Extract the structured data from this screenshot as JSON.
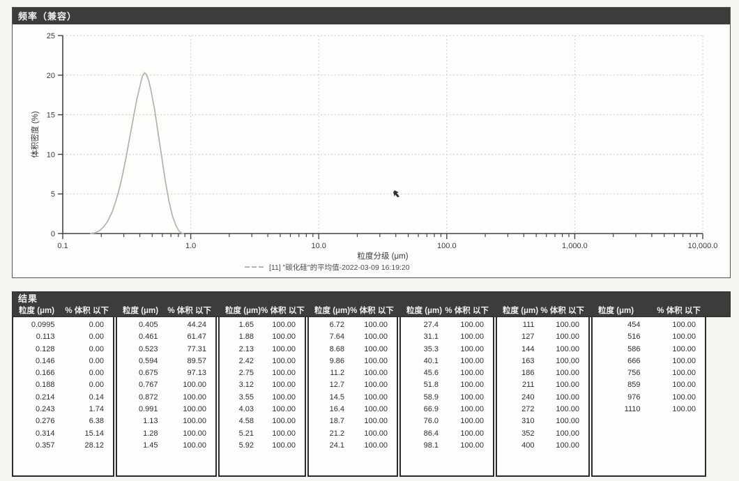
{
  "chart_panel": {
    "title": "频率（兼容）"
  },
  "chart_data": {
    "type": "line",
    "title": "频率（兼容）",
    "xlabel": "粒度分级 (μm)",
    "ylabel": "体积密度 (%)",
    "x_scale": "log",
    "xlim": [
      0.1,
      10000
    ],
    "ylim": [
      0,
      25
    ],
    "grid": true,
    "legend_position": "bottom",
    "xticks": {
      "values": [
        0.1,
        1,
        10,
        100,
        1000,
        10000
      ],
      "labels": [
        "0.1",
        "1.0",
        "10.0",
        "100.0",
        "1,000.0",
        "10,000.0"
      ]
    },
    "yticks": [
      0,
      5,
      10,
      15,
      20,
      25
    ],
    "series": [
      {
        "name": "[11] \"碳化硅\"的平均值-2022-03-09 16:19:20",
        "color": "#b2b2aa",
        "points": [
          [
            0.165,
            0
          ],
          [
            0.18,
            0.1
          ],
          [
            0.195,
            0.4
          ],
          [
            0.21,
            0.9
          ],
          [
            0.225,
            1.6
          ],
          [
            0.243,
            2.7
          ],
          [
            0.26,
            4.1
          ],
          [
            0.276,
            5.6
          ],
          [
            0.295,
            7.6
          ],
          [
            0.314,
            9.8
          ],
          [
            0.335,
            12.3
          ],
          [
            0.357,
            14.7
          ],
          [
            0.38,
            17.0
          ],
          [
            0.405,
            18.9
          ],
          [
            0.42,
            19.9
          ],
          [
            0.435,
            20.3
          ],
          [
            0.45,
            20.1
          ],
          [
            0.47,
            19.3
          ],
          [
            0.49,
            18.0
          ],
          [
            0.523,
            15.6
          ],
          [
            0.55,
            13.2
          ],
          [
            0.594,
            9.6
          ],
          [
            0.63,
            6.8
          ],
          [
            0.675,
            4.1
          ],
          [
            0.72,
            2.2
          ],
          [
            0.767,
            1.0
          ],
          [
            0.81,
            0.3
          ],
          [
            0.85,
            0.05
          ],
          [
            0.88,
            0
          ]
        ]
      }
    ]
  },
  "results": {
    "title": "结果",
    "col_headers": [
      "粒度 (μm)",
      "% 体积 以下"
    ],
    "groups": [
      [
        [
          "0.0995",
          "0.00"
        ],
        [
          "0.113",
          "0.00"
        ],
        [
          "0.128",
          "0.00"
        ],
        [
          "0.146",
          "0.00"
        ],
        [
          "0.166",
          "0.00"
        ],
        [
          "0.188",
          "0.00"
        ],
        [
          "0.214",
          "0.14"
        ],
        [
          "0.243",
          "1.74"
        ],
        [
          "0.276",
          "6.38"
        ],
        [
          "0.314",
          "15.14"
        ],
        [
          "0.357",
          "28.12"
        ]
      ],
      [
        [
          "0.405",
          "44.24"
        ],
        [
          "0.461",
          "61.47"
        ],
        [
          "0.523",
          "77.31"
        ],
        [
          "0.594",
          "89.57"
        ],
        [
          "0.675",
          "97.13"
        ],
        [
          "0.767",
          "100.00"
        ],
        [
          "0.872",
          "100.00"
        ],
        [
          "0.991",
          "100.00"
        ],
        [
          "1.13",
          "100.00"
        ],
        [
          "1.28",
          "100.00"
        ],
        [
          "1.45",
          "100.00"
        ]
      ],
      [
        [
          "1.65",
          "100.00"
        ],
        [
          "1.88",
          "100.00"
        ],
        [
          "2.13",
          "100.00"
        ],
        [
          "2.42",
          "100.00"
        ],
        [
          "2.75",
          "100.00"
        ],
        [
          "3.12",
          "100.00"
        ],
        [
          "3.55",
          "100.00"
        ],
        [
          "4.03",
          "100.00"
        ],
        [
          "4.58",
          "100.00"
        ],
        [
          "5.21",
          "100.00"
        ],
        [
          "5.92",
          "100.00"
        ]
      ],
      [
        [
          "6.72",
          "100.00"
        ],
        [
          "7.64",
          "100.00"
        ],
        [
          "8.68",
          "100.00"
        ],
        [
          "9.86",
          "100.00"
        ],
        [
          "11.2",
          "100.00"
        ],
        [
          "12.7",
          "100.00"
        ],
        [
          "14.5",
          "100.00"
        ],
        [
          "16.4",
          "100.00"
        ],
        [
          "18.7",
          "100.00"
        ],
        [
          "21.2",
          "100.00"
        ],
        [
          "24.1",
          "100.00"
        ]
      ],
      [
        [
          "27.4",
          "100.00"
        ],
        [
          "31.1",
          "100.00"
        ],
        [
          "35.3",
          "100.00"
        ],
        [
          "40.1",
          "100.00"
        ],
        [
          "45.6",
          "100.00"
        ],
        [
          "51.8",
          "100.00"
        ],
        [
          "58.9",
          "100.00"
        ],
        [
          "66.9",
          "100.00"
        ],
        [
          "76.0",
          "100.00"
        ],
        [
          "86.4",
          "100.00"
        ],
        [
          "98.1",
          "100.00"
        ]
      ],
      [
        [
          "111",
          "100.00"
        ],
        [
          "127",
          "100.00"
        ],
        [
          "144",
          "100.00"
        ],
        [
          "163",
          "100.00"
        ],
        [
          "186",
          "100.00"
        ],
        [
          "211",
          "100.00"
        ],
        [
          "240",
          "100.00"
        ],
        [
          "272",
          "100.00"
        ],
        [
          "310",
          "100.00"
        ],
        [
          "352",
          "100.00"
        ],
        [
          "400",
          "100.00"
        ]
      ],
      [
        [
          "454",
          "100.00"
        ],
        [
          "516",
          "100.00"
        ],
        [
          "586",
          "100.00"
        ],
        [
          "666",
          "100.00"
        ],
        [
          "756",
          "100.00"
        ],
        [
          "859",
          "100.00"
        ],
        [
          "976",
          "100.00"
        ],
        [
          "1110",
          "100.00"
        ]
      ]
    ]
  }
}
